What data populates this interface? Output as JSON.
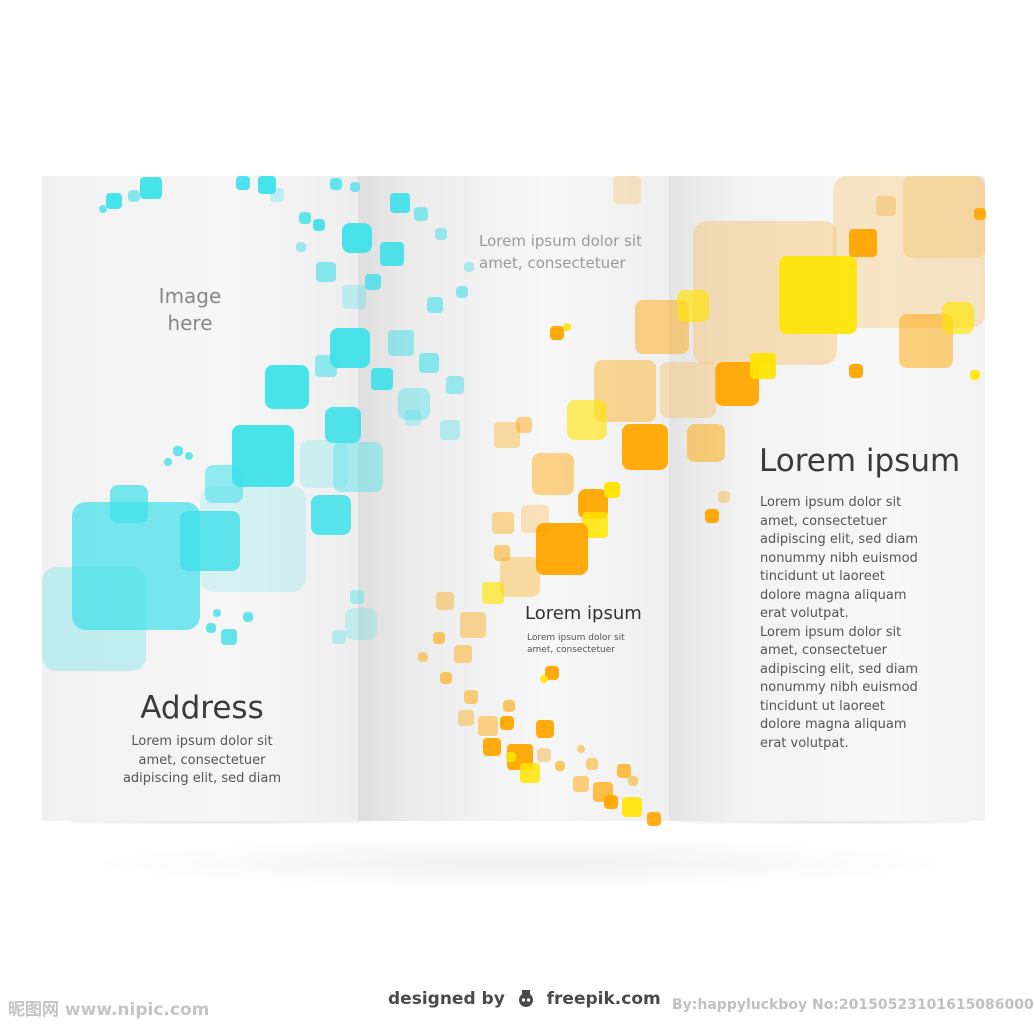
{
  "brochure": {
    "left_panel": {
      "image_placeholder": "Image\nhere",
      "address_title": "Address",
      "address_text": "Lorem ipsum dolor sit\namet, consectetuer\nadipiscing elit, sed diam"
    },
    "middle_panel": {
      "top_text": "Lorem ipsum dolor sit\namet, consectetuer",
      "heading": "Lorem ipsum",
      "small_text": "Lorem ipsum dolor sit\namet, consectetuer"
    },
    "right_panel": {
      "heading": "Lorem ipsum",
      "body": "Lorem ipsum dolor sit\namet, consectetuer\nadipiscing elit, sed diam\nnonummy nibh euismod\ntincidunt ut laoreet\ndolore magna aliquam\nerat volutpat.\nLorem ipsum dolor sit\namet, consectetuer\nadipiscing elit, sed diam\nnonummy nibh euismod\ntincidunt ut laoreet\ndolore magna aliquam\nerat volutpat."
    }
  },
  "credits": {
    "freepik_prefix": "designed by",
    "freepik_name": "freepik.com",
    "watermark_left": "昵图网 www.nipic.com",
    "watermark_right": "By:happyluckboy No:20150523101615086000"
  },
  "colors": {
    "cyan": "#3ee0ea",
    "orange": "#ffa500",
    "yellow": "#ffe400",
    "peach": "#f5c77a"
  }
}
